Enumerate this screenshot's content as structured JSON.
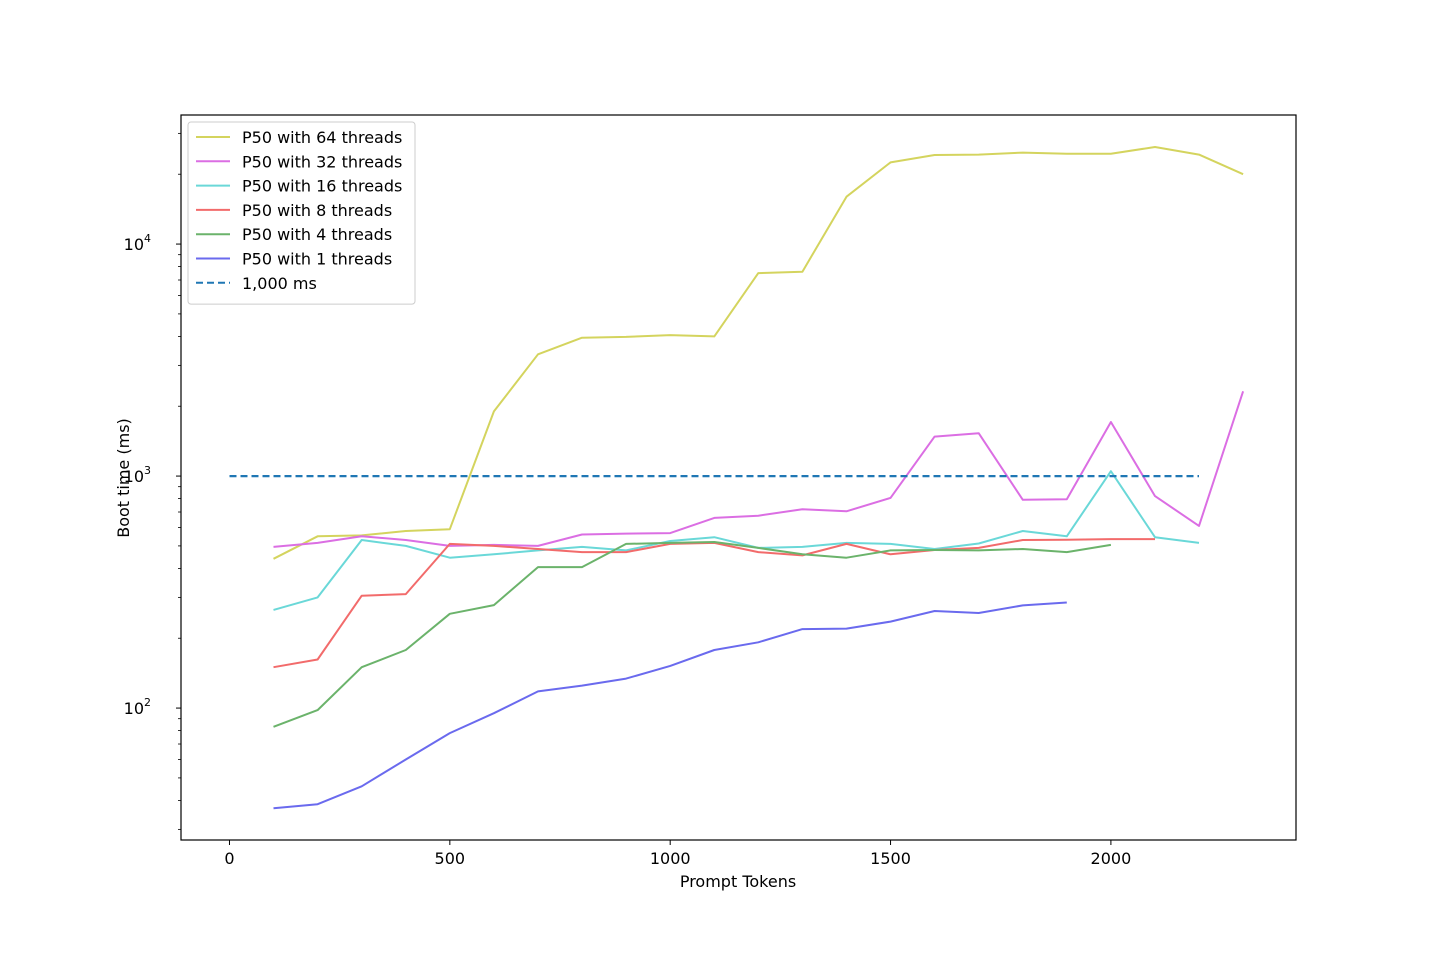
{
  "chart_data": {
    "type": "line",
    "title": "",
    "xlabel": "Prompt Tokens",
    "ylabel": "Boot time (ms)",
    "xlim": [
      -110,
      2420
    ],
    "ylim": [
      27,
      36000
    ],
    "yscale": "log",
    "grid": false,
    "legend_position": "top-left",
    "x_ticks": [
      {
        "value": 0,
        "label": "0"
      },
      {
        "value": 500,
        "label": "500"
      },
      {
        "value": 1000,
        "label": "1000"
      },
      {
        "value": 1500,
        "label": "1500"
      },
      {
        "value": 2000,
        "label": "2000"
      }
    ],
    "y_ticks": [
      {
        "value": 100,
        "label": "10",
        "sup": "2"
      },
      {
        "value": 1000,
        "label": "10",
        "sup": "3"
      },
      {
        "value": 10000,
        "label": "10",
        "sup": "4"
      }
    ],
    "series": [
      {
        "name": "P50 with 64 threads",
        "color": "#d4d45e",
        "style": "solid",
        "x": [
          100,
          200,
          300,
          400,
          500,
          600,
          700,
          800,
          900,
          1000,
          1100,
          1200,
          1300,
          1400,
          1500,
          1600,
          1700,
          1800,
          1900,
          2000,
          2100,
          2200,
          2300
        ],
        "y": [
          440,
          550,
          555,
          580,
          590,
          1900,
          3350,
          3950,
          3980,
          4050,
          4000,
          7500,
          7600,
          16000,
          22500,
          24200,
          24300,
          24800,
          24500,
          24500,
          26200,
          24300,
          20000
        ]
      },
      {
        "name": "P50 with 32 threads",
        "color": "#db6ee3",
        "style": "solid",
        "x": [
          100,
          200,
          300,
          400,
          500,
          600,
          700,
          800,
          900,
          1000,
          1100,
          1200,
          1300,
          1400,
          1500,
          1600,
          1700,
          1800,
          1900,
          2000,
          2100,
          2200,
          2300
        ],
        "y": [
          495,
          515,
          550,
          530,
          500,
          505,
          500,
          560,
          565,
          568,
          660,
          675,
          720,
          705,
          805,
          1480,
          1530,
          790,
          795,
          1710,
          820,
          610,
          2320
        ]
      },
      {
        "name": "P50 with 16 threads",
        "color": "#6ad8d8",
        "style": "solid",
        "x": [
          100,
          200,
          300,
          400,
          500,
          600,
          700,
          800,
          900,
          1000,
          1100,
          1200,
          1300,
          1400,
          1500,
          1600,
          1700,
          1800,
          1900,
          2000,
          2100,
          2200
        ],
        "y": [
          265,
          300,
          530,
          500,
          445,
          460,
          478,
          495,
          478,
          525,
          545,
          490,
          495,
          515,
          510,
          485,
          512,
          580,
          550,
          1050,
          545,
          515
        ]
      },
      {
        "name": "P50 with 8 threads",
        "color": "#f26b6b",
        "style": "solid",
        "x": [
          100,
          200,
          300,
          400,
          500,
          600,
          700,
          800,
          900,
          1000,
          1100,
          1200,
          1300,
          1400,
          1500,
          1600,
          1700,
          1800,
          1900,
          2000,
          2100
        ],
        "y": [
          150,
          162,
          305,
          310,
          510,
          500,
          485,
          470,
          470,
          510,
          515,
          470,
          455,
          510,
          460,
          480,
          490,
          530,
          532,
          535,
          535
        ]
      },
      {
        "name": "P50 with 4 threads",
        "color": "#6bb36b",
        "style": "solid",
        "x": [
          100,
          200,
          300,
          400,
          500,
          600,
          700,
          800,
          900,
          1000,
          1100,
          1200,
          1300,
          1400,
          1500,
          1600,
          1700,
          1800,
          1900,
          2000
        ],
        "y": [
          83,
          98,
          150,
          178,
          255,
          278,
          405,
          405,
          510,
          515,
          520,
          490,
          460,
          445,
          478,
          480,
          478,
          485,
          470,
          505
        ]
      },
      {
        "name": "P50 with 1 threads",
        "color": "#6a6aee",
        "style": "solid",
        "x": [
          100,
          200,
          300,
          400,
          500,
          600,
          700,
          800,
          900,
          1000,
          1100,
          1200,
          1300,
          1400,
          1500,
          1600,
          1700,
          1800,
          1900
        ],
        "y": [
          37,
          38.5,
          46,
          60,
          78,
          95,
          118,
          125,
          134,
          152,
          178,
          192,
          219,
          220,
          236,
          262,
          257,
          277,
          285
        ]
      },
      {
        "name": "1,000 ms",
        "color": "#1f77b4",
        "style": "dashed",
        "x": [
          0,
          2200
        ],
        "y": [
          1000,
          1000
        ]
      }
    ]
  }
}
